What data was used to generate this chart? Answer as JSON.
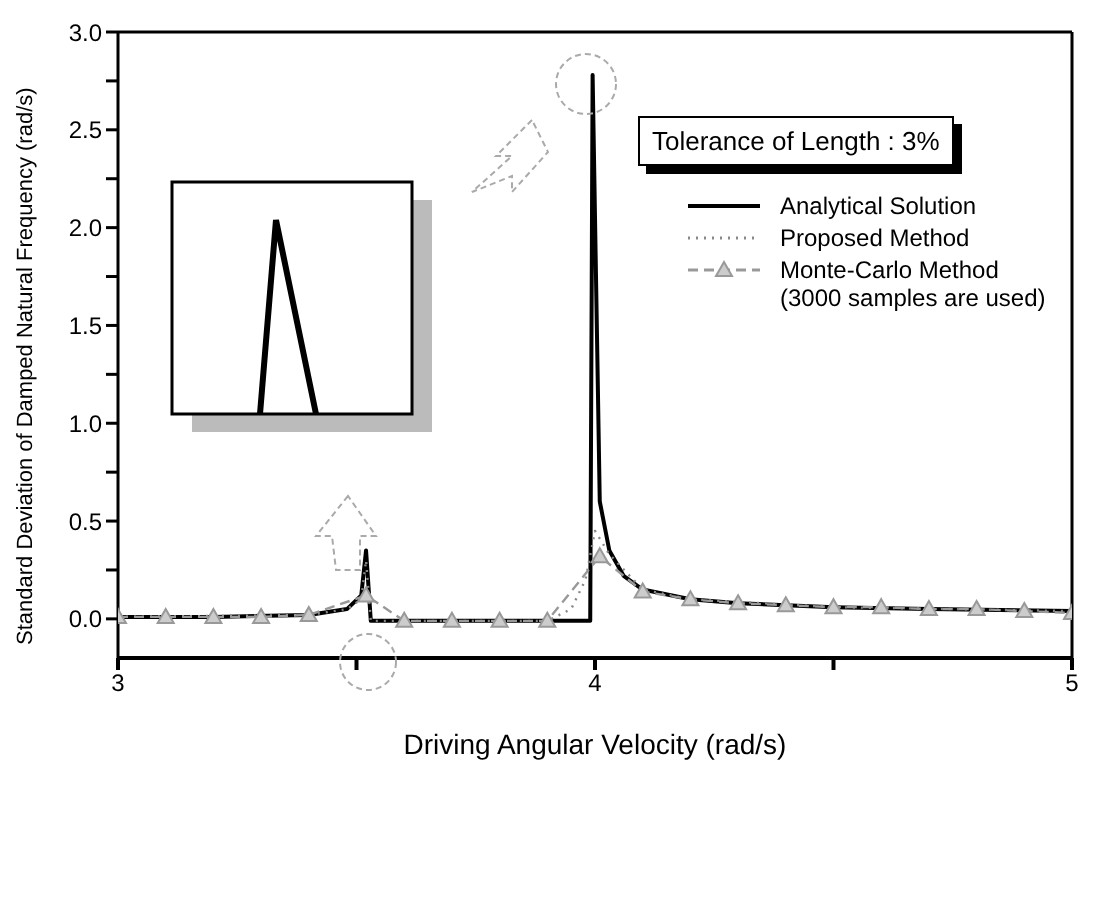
{
  "chart_data": {
    "type": "line",
    "xlabel": "Driving Angular Velocity (rad/s)",
    "ylabel": "Standard Deviation of Damped Natural Frequency (rad/s)",
    "xlim": [
      3,
      5
    ],
    "xticks": [
      3,
      {
        "value": 3.5,
        "label": null
      },
      4,
      {
        "value": 4.5,
        "label": null
      },
      5
    ],
    "ylim": [
      -0.2,
      3.0
    ],
    "yticks": [
      {
        "value": 0,
        "label": "0.0"
      },
      {
        "value": 0.25,
        "label": null
      },
      {
        "value": 0.5,
        "label": "0.5"
      },
      {
        "value": 0.75,
        "label": null
      },
      {
        "value": 1,
        "label": "1.0"
      },
      {
        "value": 1.25,
        "label": null
      },
      {
        "value": 1.5,
        "label": "1.5"
      },
      {
        "value": 1.75,
        "label": null
      },
      {
        "value": 2,
        "label": "2.0"
      },
      {
        "value": 2.25,
        "label": null
      },
      {
        "value": 2.5,
        "label": "2.5"
      },
      {
        "value": 2.75,
        "label": null
      },
      {
        "value": 3,
        "label": "3.0"
      }
    ],
    "annotations": [
      "Tolerance of Length : 3%"
    ],
    "legend": "top right",
    "grid": false,
    "series": [
      {
        "name": "Analytical Solution",
        "color": "#000000",
        "marker": "none",
        "line_style": "solid",
        "x": [
          3.0,
          3.2,
          3.4,
          3.48,
          3.51,
          3.52,
          3.53,
          3.7,
          3.99,
          3.995,
          4.01,
          4.03,
          4.06,
          4.1,
          4.2,
          4.3,
          4.5,
          4.7,
          5.0
        ],
        "values": [
          0.01,
          0.01,
          0.02,
          0.05,
          0.12,
          0.35,
          -0.01,
          -0.01,
          -0.01,
          2.78,
          0.6,
          0.35,
          0.22,
          0.15,
          0.1,
          0.08,
          0.06,
          0.05,
          0.04
        ]
      },
      {
        "name": "Proposed Method",
        "color": "#888888",
        "marker": "none",
        "line_style": "dotted",
        "x": [
          3.0,
          3.4,
          3.48,
          3.51,
          3.52,
          3.53,
          3.9,
          3.95,
          3.98,
          4.0,
          4.03,
          4.1,
          4.2,
          4.5,
          5.0
        ],
        "values": [
          0.01,
          0.02,
          0.05,
          0.1,
          0.3,
          -0.01,
          -0.01,
          0.05,
          0.2,
          0.45,
          0.33,
          0.15,
          0.1,
          0.06,
          0.04
        ]
      },
      {
        "name": "Monte-Carlo Method (3000 samples are used)",
        "color": "#999999",
        "marker": "triangle",
        "line_style": "dashed",
        "x": [
          3.0,
          3.1,
          3.2,
          3.3,
          3.4,
          3.52,
          3.6,
          3.7,
          3.8,
          3.9,
          4.01,
          4.1,
          4.2,
          4.3,
          4.4,
          4.5,
          4.6,
          4.7,
          4.8,
          4.9,
          5.0
        ],
        "values": [
          0.01,
          0.01,
          0.01,
          0.01,
          0.02,
          0.12,
          -0.01,
          -0.01,
          -0.01,
          -0.01,
          0.32,
          0.14,
          0.1,
          0.08,
          0.07,
          0.06,
          0.06,
          0.05,
          0.05,
          0.04,
          0.03
        ]
      }
    ]
  }
}
